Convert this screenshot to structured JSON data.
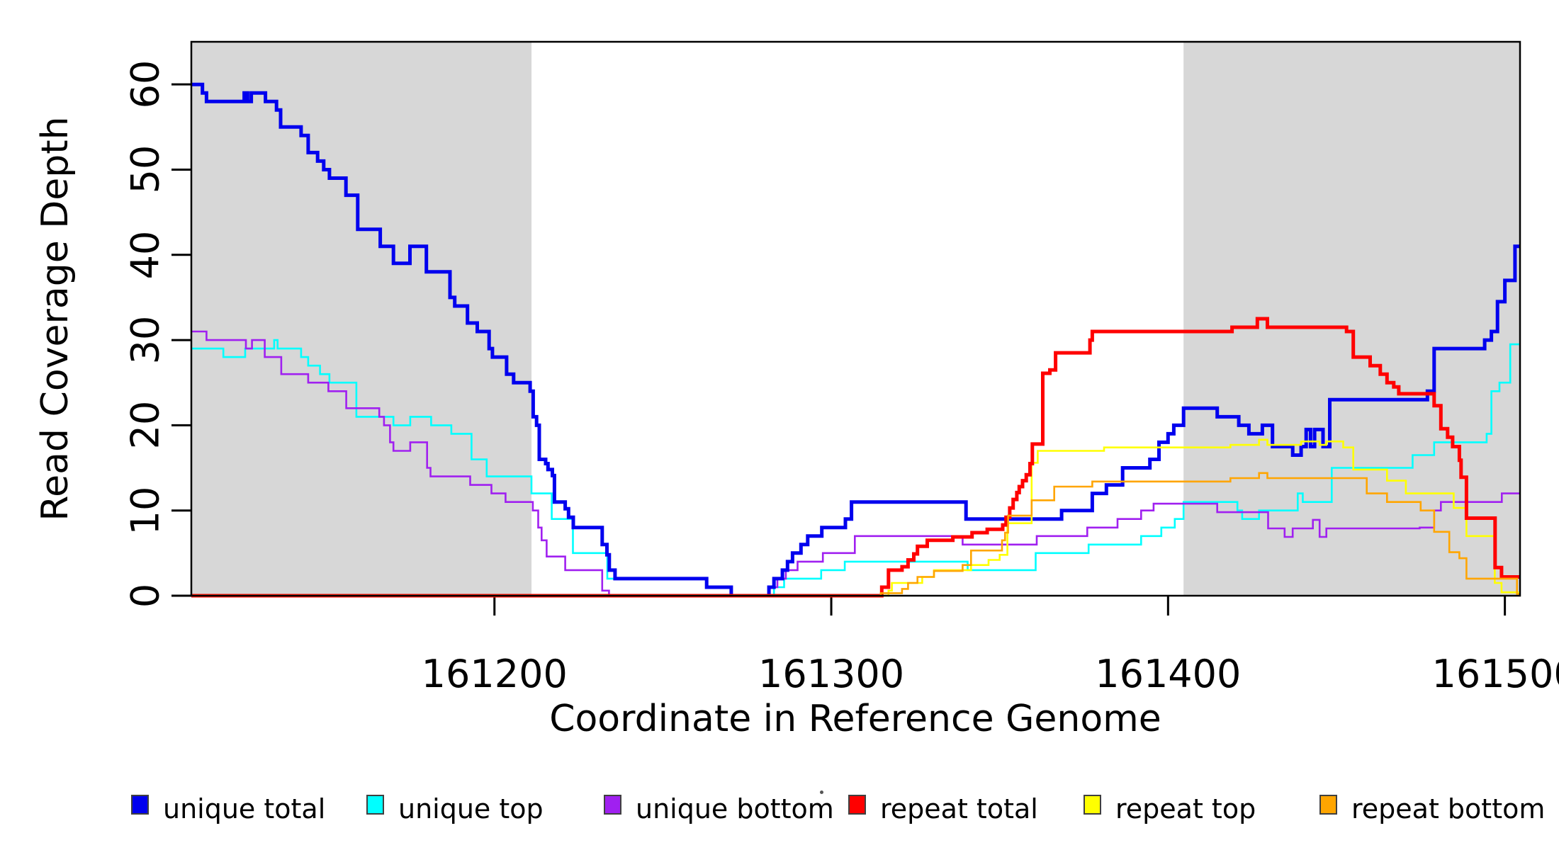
{
  "chart_data": {
    "type": "line",
    "subtype": "step-coverage-plot",
    "title": "",
    "xlabel": "Coordinate in Reference Genome",
    "ylabel": "Read Coverage Depth",
    "xlim": [
      161110,
      161504.5
    ],
    "ylim": [
      0,
      65
    ],
    "grid": false,
    "xticks": [
      161200,
      161300,
      161400,
      161500
    ],
    "yticks": [
      0,
      10,
      20,
      30,
      40,
      50,
      60
    ],
    "shaded_regions": [
      {
        "from": 161110,
        "to": 161211,
        "color": "#D7D7D7"
      },
      {
        "from": 161404.6,
        "to": 161504.5,
        "color": "#D7D7D7"
      }
    ],
    "axis_color": "#000000",
    "legend_position": "bottom",
    "series": [
      {
        "name": "unique total",
        "color": "#0000EE",
        "line_width": 5,
        "points": [
          [
            161110,
            60
          ],
          [
            161113.3,
            59
          ],
          [
            161114.5,
            58
          ],
          [
            161125.7,
            59
          ],
          [
            161126.7,
            58
          ],
          [
            161127.8,
            59
          ],
          [
            161132,
            58
          ],
          [
            161135.3,
            57
          ],
          [
            161136.5,
            55
          ],
          [
            161142.6,
            54
          ],
          [
            161144.7,
            52
          ],
          [
            161147.5,
            51
          ],
          [
            161149.3,
            50
          ],
          [
            161151,
            49
          ],
          [
            161155.9,
            47
          ],
          [
            161159.4,
            43
          ],
          [
            161166.1,
            41
          ],
          [
            161170,
            39
          ],
          [
            161174.9,
            41
          ],
          [
            161179.8,
            38
          ],
          [
            161186.8,
            35
          ],
          [
            161188.2,
            34
          ],
          [
            161192,
            32
          ],
          [
            161194.9,
            31
          ],
          [
            161198.4,
            29
          ],
          [
            161199.4,
            28
          ],
          [
            161203.6,
            26
          ],
          [
            161205.7,
            25
          ],
          [
            161210.6,
            24
          ],
          [
            161211.5,
            21
          ],
          [
            161212.5,
            20
          ],
          [
            161213.3,
            16
          ],
          [
            161215.2,
            15.5
          ],
          [
            161215.9,
            14.8
          ],
          [
            161217.2,
            14.1
          ],
          [
            161217.8,
            11
          ],
          [
            161221,
            10.2
          ],
          [
            161222,
            9.2
          ],
          [
            161223.4,
            8
          ],
          [
            161232,
            6
          ],
          [
            161233.4,
            4.8
          ],
          [
            161234.1,
            3
          ],
          [
            161235.8,
            2
          ],
          [
            161263,
            1
          ],
          [
            161270.3,
            0
          ],
          [
            161281.5,
            1
          ],
          [
            161283,
            2
          ],
          [
            161285.5,
            3
          ],
          [
            161287,
            4
          ],
          [
            161288.5,
            5
          ],
          [
            161291,
            6
          ],
          [
            161293,
            7
          ],
          [
            161297.2,
            8
          ],
          [
            161304.2,
            9
          ],
          [
            161306,
            11
          ],
          [
            161340,
            9
          ],
          [
            161368.4,
            10
          ],
          [
            161377.5,
            12
          ],
          [
            161381.7,
            13
          ],
          [
            161386.5,
            15
          ],
          [
            161394.6,
            16
          ],
          [
            161397.3,
            18
          ],
          [
            161400,
            19
          ],
          [
            161401.7,
            20
          ],
          [
            161404.6,
            22
          ],
          [
            161414.6,
            21
          ],
          [
            161421,
            20
          ],
          [
            161424,
            19
          ],
          [
            161428,
            20
          ],
          [
            161431,
            17.5
          ],
          [
            161437,
            16.5
          ],
          [
            161439.5,
            17.5
          ],
          [
            161441,
            19.5
          ],
          [
            161442.3,
            17.5
          ],
          [
            161443.5,
            19.5
          ],
          [
            161446,
            17.5
          ],
          [
            161448,
            23
          ],
          [
            161477,
            24
          ],
          [
            161479,
            29
          ],
          [
            161494,
            30
          ],
          [
            161496,
            31
          ],
          [
            161497.8,
            34.5
          ],
          [
            161500,
            37
          ],
          [
            161503,
            41
          ]
        ]
      },
      {
        "name": "unique top",
        "color": "#00FFFF",
        "line_width": 2.6,
        "points": [
          [
            161110,
            29
          ],
          [
            161119.5,
            28
          ],
          [
            161126,
            29
          ],
          [
            161134.6,
            30
          ],
          [
            161135.6,
            29
          ],
          [
            161142.6,
            28
          ],
          [
            161144.7,
            27
          ],
          [
            161148.2,
            26
          ],
          [
            161151,
            25
          ],
          [
            161159,
            21
          ],
          [
            161170,
            20
          ],
          [
            161175,
            21
          ],
          [
            161181.2,
            20
          ],
          [
            161187.2,
            19
          ],
          [
            161193.2,
            16
          ],
          [
            161197.7,
            14
          ],
          [
            161211,
            12
          ],
          [
            161217,
            9
          ],
          [
            161223.3,
            5
          ],
          [
            161233.5,
            2
          ],
          [
            161263,
            1
          ],
          [
            161270.3,
            0
          ],
          [
            161283,
            1
          ],
          [
            161286,
            2
          ],
          [
            161297,
            3
          ],
          [
            161304,
            4
          ],
          [
            161340.5,
            3
          ],
          [
            161360.7,
            5
          ],
          [
            161376.4,
            6
          ],
          [
            161392,
            7
          ],
          [
            161398,
            8
          ],
          [
            161402,
            9
          ],
          [
            161404.6,
            11
          ],
          [
            161420.6,
            10
          ],
          [
            161422,
            9
          ],
          [
            161427,
            10
          ],
          [
            161438.5,
            12
          ],
          [
            161440,
            11
          ],
          [
            161448.6,
            15
          ],
          [
            161472.6,
            16.5
          ],
          [
            161479,
            18
          ],
          [
            161494.6,
            19
          ],
          [
            161496,
            24
          ],
          [
            161498.4,
            25
          ],
          [
            161501.6,
            29.5
          ]
        ]
      },
      {
        "name": "unique bottom",
        "color": "#A020F0",
        "line_width": 2.6,
        "points": [
          [
            161110,
            31
          ],
          [
            161114.5,
            30
          ],
          [
            161126.2,
            29
          ],
          [
            161128,
            30
          ],
          [
            161131.8,
            28
          ],
          [
            161136.7,
            26
          ],
          [
            161144.7,
            25
          ],
          [
            161150.7,
            24
          ],
          [
            161156,
            22
          ],
          [
            161165.8,
            21
          ],
          [
            161167.2,
            20
          ],
          [
            161169,
            18
          ],
          [
            161170,
            17
          ],
          [
            161175,
            18
          ],
          [
            161180,
            15
          ],
          [
            161181,
            14
          ],
          [
            161192.8,
            13
          ],
          [
            161199.1,
            12
          ],
          [
            161203.3,
            11
          ],
          [
            161211.4,
            10
          ],
          [
            161213,
            8
          ],
          [
            161214,
            6.5
          ],
          [
            161215.5,
            4.6
          ],
          [
            161221,
            3
          ],
          [
            161232,
            0.6
          ],
          [
            161234,
            0
          ],
          [
            161281.5,
            1
          ],
          [
            161284,
            2
          ],
          [
            161286.5,
            3
          ],
          [
            161290,
            4
          ],
          [
            161297.5,
            5
          ],
          [
            161307,
            7
          ],
          [
            161339,
            6
          ],
          [
            161361,
            7
          ],
          [
            161376,
            8
          ],
          [
            161385,
            9
          ],
          [
            161392,
            10
          ],
          [
            161395.7,
            10.8
          ],
          [
            161414.6,
            9.8
          ],
          [
            161429.7,
            7.9
          ],
          [
            161434.6,
            6.9
          ],
          [
            161437,
            7.9
          ],
          [
            161443,
            8.9
          ],
          [
            161445,
            6.9
          ],
          [
            161447,
            7.9
          ],
          [
            161474.7,
            8
          ],
          [
            161479,
            10
          ],
          [
            161481,
            11
          ],
          [
            161499.1,
            12
          ]
        ]
      },
      {
        "name": "repeat total",
        "color": "#FF0000",
        "line_width": 5,
        "points": [
          [
            161110,
            0
          ],
          [
            161315,
            1
          ],
          [
            161317,
            3
          ],
          [
            161321,
            3.4
          ],
          [
            161322.8,
            4.2
          ],
          [
            161324.5,
            4.9
          ],
          [
            161325.6,
            5.8
          ],
          [
            161328.5,
            6.5
          ],
          [
            161336.1,
            6.9
          ],
          [
            161341.8,
            7.4
          ],
          [
            161346.3,
            7.8
          ],
          [
            161350.9,
            8.3
          ],
          [
            161351.9,
            9.2
          ],
          [
            161353,
            10.3
          ],
          [
            161354,
            11.3
          ],
          [
            161355.1,
            12.1
          ],
          [
            161355.8,
            12.8
          ],
          [
            161356.8,
            13.5
          ],
          [
            161357.9,
            14.2
          ],
          [
            161359,
            15.5
          ],
          [
            161359.7,
            17.8
          ],
          [
            161362.8,
            26.1
          ],
          [
            161364.9,
            26.5
          ],
          [
            161366.6,
            28.5
          ],
          [
            161376.8,
            30
          ],
          [
            161377.5,
            31
          ],
          [
            161419,
            31.5
          ],
          [
            161426.5,
            32.5
          ],
          [
            161429.5,
            31.5
          ],
          [
            161453,
            31
          ],
          [
            161455,
            28
          ],
          [
            161460,
            27
          ],
          [
            161463,
            26
          ],
          [
            161465,
            25
          ],
          [
            161467,
            24.5
          ],
          [
            161468.5,
            23.7
          ],
          [
            161479,
            22.3
          ],
          [
            161481,
            19.6
          ],
          [
            161483,
            18.6
          ],
          [
            161484.5,
            17.5
          ],
          [
            161486.5,
            15.9
          ],
          [
            161487,
            13.9
          ],
          [
            161488.6,
            9.1
          ],
          [
            161497.1,
            3.3
          ],
          [
            161499,
            2.2
          ]
        ]
      },
      {
        "name": "repeat top",
        "color": "#FFFF00",
        "line_width": 2.6,
        "points": [
          [
            161110,
            0
          ],
          [
            161317,
            0.6
          ],
          [
            161318,
            1.5
          ],
          [
            161327,
            2.2
          ],
          [
            161330.5,
            3
          ],
          [
            161341.5,
            3.6
          ],
          [
            161346.7,
            4.2
          ],
          [
            161350,
            4.8
          ],
          [
            161352.3,
            8.5
          ],
          [
            161359.5,
            15.6
          ],
          [
            161361.3,
            17
          ],
          [
            161381,
            17.4
          ],
          [
            161418.5,
            17.7
          ],
          [
            161427,
            18.3
          ],
          [
            161429.5,
            17.7
          ],
          [
            161439.5,
            18.1
          ],
          [
            161445,
            17.7
          ],
          [
            161447,
            18.1
          ],
          [
            161452,
            17.4
          ],
          [
            161455,
            14.8
          ],
          [
            161465,
            13.5
          ],
          [
            161470.6,
            12
          ],
          [
            161484.8,
            10.3
          ],
          [
            161488.6,
            7
          ],
          [
            161497,
            1.5
          ],
          [
            161499,
            0.4
          ]
        ]
      },
      {
        "name": "repeat bottom",
        "color": "#FFA500",
        "line_width": 2.6,
        "points": [
          [
            161110,
            0
          ],
          [
            161314.7,
            0.3
          ],
          [
            161321,
            0.8
          ],
          [
            161322.8,
            1.5
          ],
          [
            161325.6,
            2.2
          ],
          [
            161330.5,
            2.9
          ],
          [
            161339,
            3.6
          ],
          [
            161341.5,
            5.3
          ],
          [
            161350.7,
            6.5
          ],
          [
            161351.6,
            7.4
          ],
          [
            161352.5,
            9.4
          ],
          [
            161359.5,
            11.2
          ],
          [
            161366.2,
            12.8
          ],
          [
            161377.5,
            13.4
          ],
          [
            161418.5,
            13.8
          ],
          [
            161427,
            14.4
          ],
          [
            161429.5,
            13.8
          ],
          [
            161459,
            12
          ],
          [
            161465,
            11
          ],
          [
            161475,
            10
          ],
          [
            161479,
            7.5
          ],
          [
            161483.5,
            5.1
          ],
          [
            161486.5,
            4.4
          ],
          [
            161488.6,
            2
          ],
          [
            161503.6,
            0.2
          ]
        ]
      }
    ],
    "legend": {
      "items": [
        {
          "label": "unique total",
          "color": "#0000EE"
        },
        {
          "label": "unique top",
          "color": "#00FFFF"
        },
        {
          "label": "unique bottom",
          "color": "#A020F0"
        },
        {
          "label": "repeat total",
          "color": "#FF0000"
        },
        {
          "label": "repeat top",
          "color": "#FFFF00"
        },
        {
          "label": "repeat bottom",
          "color": "#FFA500"
        }
      ]
    }
  }
}
